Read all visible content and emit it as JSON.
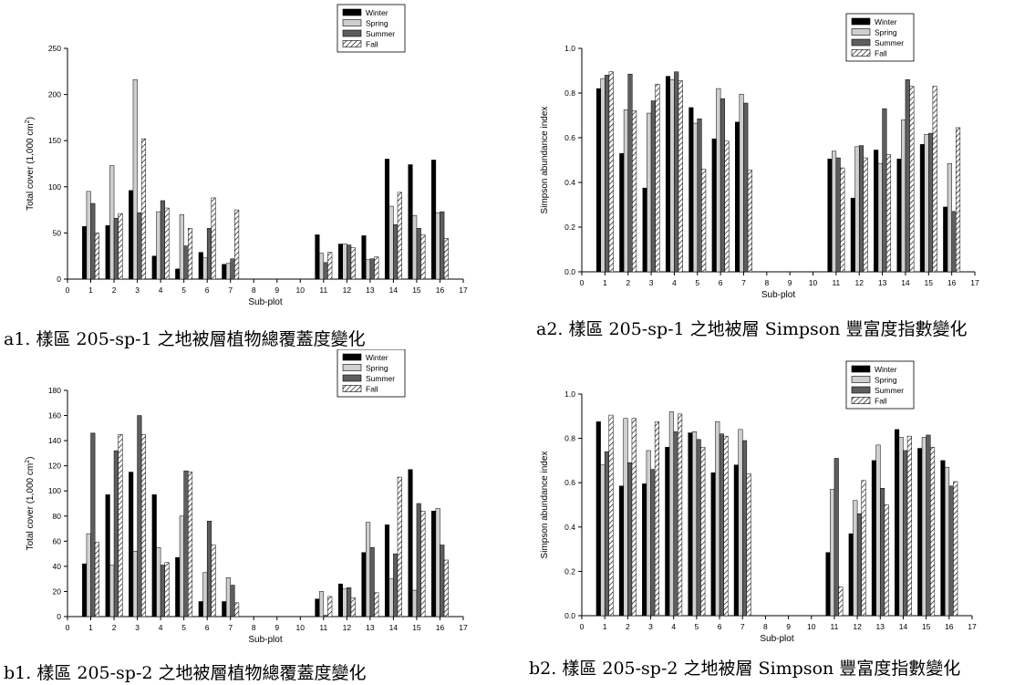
{
  "legend_labels": [
    "Winter",
    "Spring",
    "Summer",
    "Fall"
  ],
  "captions": {
    "a1": "a1. 樣區 205-sp-1 之地被層植物總覆蓋度變化",
    "a2": "a2. 樣區 205-sp-1 之地被層 Simpson 豐富度指數變化",
    "b1": "b1. 樣區 205-sp-2 之地被層植物總覆蓋度變化",
    "b2": "b2. 樣區 205-sp-2 之地被層 Simpson 豐富度指數變化"
  },
  "chart_data": [
    {
      "id": "a1",
      "type": "bar",
      "xlabel": "Sub-plot",
      "ylabel": "Total cover (1,000 cm²)",
      "ylim": [
        0,
        250
      ],
      "yticks": [
        0,
        50,
        100,
        150,
        200,
        250
      ],
      "xlim": [
        0,
        17
      ],
      "xticks": [
        0,
        1,
        2,
        3,
        4,
        5,
        6,
        7,
        8,
        9,
        10,
        11,
        12,
        13,
        14,
        15,
        16,
        17
      ],
      "legend_position": "top-right",
      "categories": [
        1,
        2,
        3,
        4,
        5,
        6,
        7,
        11,
        12,
        13,
        14,
        15,
        16
      ],
      "series": [
        {
          "name": "Winter",
          "values": [
            57,
            58,
            96,
            25,
            11,
            29,
            16,
            48,
            38,
            47,
            130,
            124,
            129
          ]
        },
        {
          "name": "Spring",
          "values": [
            95,
            123,
            216,
            73,
            70,
            23,
            17,
            28,
            38,
            21,
            79,
            69,
            72
          ]
        },
        {
          "name": "Summer",
          "values": [
            82,
            66,
            72,
            85,
            36,
            55,
            22,
            18,
            37,
            22,
            59,
            55,
            73
          ]
        },
        {
          "name": "Fall",
          "values": [
            50,
            71,
            152,
            77,
            55,
            88,
            75,
            29,
            34,
            24,
            94,
            48,
            44
          ]
        }
      ]
    },
    {
      "id": "a2",
      "type": "bar",
      "xlabel": "Sub-plot",
      "ylabel": "Simpson abundance index",
      "ylim": [
        0,
        1
      ],
      "yticks": [
        "0.0",
        "0.2",
        "0.4",
        "0.6",
        "0.8",
        "1.0"
      ],
      "xlim": [
        0,
        17
      ],
      "xticks": [
        0,
        1,
        2,
        3,
        4,
        5,
        6,
        7,
        8,
        9,
        10,
        11,
        12,
        13,
        14,
        15,
        16,
        17
      ],
      "legend_position": "top-right",
      "categories": [
        1,
        2,
        3,
        4,
        5,
        6,
        7,
        11,
        12,
        13,
        14,
        15,
        16
      ],
      "series": [
        {
          "name": "Winter",
          "values": [
            0.82,
            0.53,
            0.375,
            0.875,
            0.735,
            0.595,
            0.67,
            0.505,
            0.33,
            0.545,
            0.505,
            0.57,
            0.29
          ]
        },
        {
          "name": "Spring",
          "values": [
            0.865,
            0.725,
            0.71,
            0.86,
            0.665,
            0.82,
            0.795,
            0.54,
            0.56,
            0.485,
            0.68,
            0.615,
            0.485
          ]
        },
        {
          "name": "Summer",
          "values": [
            0.88,
            0.885,
            0.765,
            0.895,
            0.685,
            0.775,
            0.755,
            0.51,
            0.565,
            0.73,
            0.86,
            0.62,
            0.27
          ]
        },
        {
          "name": "Fall",
          "values": [
            0.895,
            0.72,
            0.84,
            0.855,
            0.46,
            0.585,
            0.455,
            0.465,
            0.51,
            0.525,
            0.83,
            0.83,
            0.645
          ]
        }
      ]
    },
    {
      "id": "b1",
      "type": "bar",
      "xlabel": "Sub-plot",
      "ylabel": "Total cover (1,000 cm²)",
      "ylim": [
        0,
        180
      ],
      "yticks": [
        0,
        20,
        40,
        60,
        80,
        100,
        120,
        140,
        160,
        180
      ],
      "xlim": [
        0,
        17
      ],
      "xticks": [
        0,
        1,
        2,
        3,
        4,
        5,
        6,
        7,
        8,
        9,
        10,
        11,
        12,
        13,
        14,
        15,
        16,
        17
      ],
      "legend_position": "top-right",
      "categories": [
        1,
        2,
        3,
        4,
        5,
        6,
        7,
        11,
        12,
        13,
        14,
        15,
        16
      ],
      "series": [
        {
          "name": "Winter",
          "values": [
            42,
            97,
            115,
            97,
            47,
            12,
            12,
            14,
            26,
            51,
            73,
            117,
            84
          ]
        },
        {
          "name": "Spring",
          "values": [
            66,
            41,
            52,
            55,
            80,
            35,
            31,
            20,
            22,
            75,
            30,
            21,
            86
          ]
        },
        {
          "name": "Summer",
          "values": [
            146,
            132,
            160,
            41,
            116,
            76,
            25,
            1,
            23,
            55,
            50,
            90,
            57
          ]
        },
        {
          "name": "Fall",
          "values": [
            59,
            145,
            145,
            43,
            115,
            57,
            11,
            16,
            15,
            19,
            111,
            84,
            45
          ]
        }
      ]
    },
    {
      "id": "b2",
      "type": "bar",
      "xlabel": "Sub-plot",
      "ylabel": "Simpson abundance index",
      "ylim": [
        0,
        1
      ],
      "yticks": [
        "0.0",
        "0.2",
        "0.4",
        "0.6",
        "0.8",
        "1.0"
      ],
      "xlim": [
        0,
        17
      ],
      "xticks": [
        0,
        1,
        2,
        3,
        4,
        5,
        6,
        7,
        8,
        9,
        10,
        11,
        12,
        13,
        14,
        15,
        16,
        17
      ],
      "legend_position": "top-right",
      "categories": [
        1,
        2,
        3,
        4,
        5,
        6,
        7,
        11,
        12,
        13,
        14,
        15,
        16
      ],
      "series": [
        {
          "name": "Winter",
          "values": [
            0.875,
            0.585,
            0.595,
            0.76,
            0.825,
            0.645,
            0.68,
            0.285,
            0.37,
            0.7,
            0.84,
            0.755,
            0.7
          ]
        },
        {
          "name": "Spring",
          "values": [
            0.68,
            0.89,
            0.745,
            0.92,
            0.83,
            0.875,
            0.84,
            0.57,
            0.52,
            0.77,
            0.805,
            0.805,
            0.67
          ]
        },
        {
          "name": "Summer",
          "values": [
            0.74,
            0.69,
            0.66,
            0.83,
            0.795,
            0.82,
            0.79,
            0.71,
            0.46,
            0.575,
            0.745,
            0.815,
            0.585
          ]
        },
        {
          "name": "Fall",
          "values": [
            0.905,
            0.89,
            0.875,
            0.91,
            0.76,
            0.81,
            0.64,
            0.13,
            0.61,
            0.5,
            0.81,
            0.76,
            0.605
          ]
        }
      ]
    }
  ]
}
